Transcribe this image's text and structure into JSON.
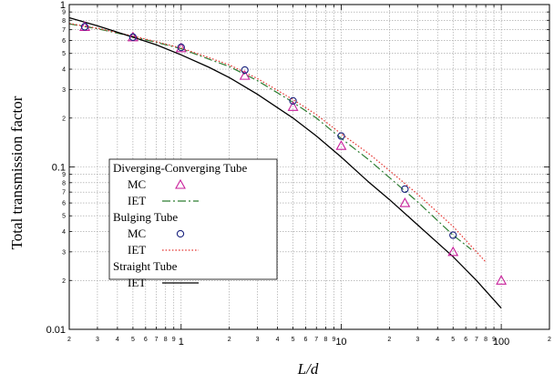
{
  "chart_data": {
    "type": "scatter",
    "title": "",
    "xlabel": "L/d",
    "ylabel": "Total transmission factor",
    "x_scale": "log",
    "y_scale": "log",
    "xlim": [
      0.2,
      200
    ],
    "ylim": [
      0.01,
      1
    ],
    "grid": true,
    "x_major_ticks": [
      {
        "v": 1,
        "label": "1"
      },
      {
        "v": 10,
        "label": "10"
      },
      {
        "v": 100,
        "label": "100"
      }
    ],
    "x_minor_ticks": [
      {
        "v": 0.2,
        "label": "2"
      },
      {
        "v": 0.3,
        "label": "3"
      },
      {
        "v": 0.4,
        "label": "4"
      },
      {
        "v": 0.5,
        "label": "5"
      },
      {
        "v": 0.6,
        "label": "6"
      },
      {
        "v": 0.7,
        "label": "7"
      },
      {
        "v": 0.8,
        "label": "8"
      },
      {
        "v": 0.9,
        "label": "9"
      },
      {
        "v": 2,
        "label": "2"
      },
      {
        "v": 3,
        "label": "3"
      },
      {
        "v": 4,
        "label": "4"
      },
      {
        "v": 5,
        "label": "5"
      },
      {
        "v": 6,
        "label": "6"
      },
      {
        "v": 7,
        "label": "7"
      },
      {
        "v": 8,
        "label": "8"
      },
      {
        "v": 9,
        "label": "9"
      },
      {
        "v": 20,
        "label": "2"
      },
      {
        "v": 30,
        "label": "3"
      },
      {
        "v": 40,
        "label": "4"
      },
      {
        "v": 50,
        "label": "5"
      },
      {
        "v": 60,
        "label": "6"
      },
      {
        "v": 70,
        "label": "7"
      },
      {
        "v": 80,
        "label": "8"
      },
      {
        "v": 90,
        "label": "9"
      },
      {
        "v": 200,
        "label": "2"
      }
    ],
    "y_major_ticks": [
      {
        "v": 0.01,
        "label": "0.01"
      },
      {
        "v": 0.1,
        "label": "0.1"
      },
      {
        "v": 1,
        "label": "1"
      }
    ],
    "y_minor_ticks": [
      {
        "v": 0.02,
        "label": "2"
      },
      {
        "v": 0.03,
        "label": "3"
      },
      {
        "v": 0.04,
        "label": "4"
      },
      {
        "v": 0.05,
        "label": "5"
      },
      {
        "v": 0.06,
        "label": "6"
      },
      {
        "v": 0.07,
        "label": "7"
      },
      {
        "v": 0.08,
        "label": "8"
      },
      {
        "v": 0.09,
        "label": "9"
      },
      {
        "v": 0.2,
        "label": "2"
      },
      {
        "v": 0.3,
        "label": "3"
      },
      {
        "v": 0.4,
        "label": "4"
      },
      {
        "v": 0.5,
        "label": "5"
      },
      {
        "v": 0.6,
        "label": "6"
      },
      {
        "v": 0.7,
        "label": "7"
      },
      {
        "v": 0.8,
        "label": "8"
      },
      {
        "v": 0.9,
        "label": "9"
      }
    ],
    "legend": {
      "position": "left-center",
      "groups": [
        {
          "title": "Diverging-Converging Tube",
          "entries": [
            {
              "label": "MC",
              "series": "dc_mc"
            },
            {
              "label": "IET",
              "series": "dc_iet"
            }
          ]
        },
        {
          "title": "Bulging Tube",
          "entries": [
            {
              "label": "MC",
              "series": "bt_mc"
            },
            {
              "label": "IET",
              "series": "bt_iet"
            }
          ]
        },
        {
          "title": "Straight Tube",
          "entries": [
            {
              "label": "IET",
              "series": "st_iet"
            }
          ]
        }
      ]
    },
    "series": [
      {
        "id": "dc_mc",
        "marker": "triangle",
        "color": "#c81e9a",
        "kind": "points",
        "points": [
          [
            0.25,
            0.73
          ],
          [
            0.5,
            0.63
          ],
          [
            1,
            0.54
          ],
          [
            2.5,
            0.365
          ],
          [
            5,
            0.235
          ],
          [
            10,
            0.135
          ],
          [
            25,
            0.06
          ],
          [
            50,
            0.03
          ],
          [
            100,
            0.02
          ]
        ]
      },
      {
        "id": "dc_iet",
        "marker": "none",
        "color": "#2e7d32",
        "kind": "dashdot",
        "points": [
          [
            0.2,
            0.76
          ],
          [
            0.3,
            0.71
          ],
          [
            0.5,
            0.635
          ],
          [
            0.7,
            0.585
          ],
          [
            1,
            0.535
          ],
          [
            1.5,
            0.46
          ],
          [
            2,
            0.415
          ],
          [
            3,
            0.34
          ],
          [
            5,
            0.25
          ],
          [
            7,
            0.2
          ],
          [
            10,
            0.15
          ],
          [
            15,
            0.11
          ],
          [
            20,
            0.086
          ],
          [
            30,
            0.061
          ],
          [
            50,
            0.038
          ],
          [
            65,
            0.031
          ]
        ]
      },
      {
        "id": "bt_mc",
        "marker": "circle",
        "color": "#1a237e",
        "kind": "points",
        "points": [
          [
            0.25,
            0.73
          ],
          [
            0.5,
            0.63
          ],
          [
            1,
            0.545
          ],
          [
            2.5,
            0.395
          ],
          [
            5,
            0.255
          ],
          [
            10,
            0.155
          ],
          [
            25,
            0.073
          ],
          [
            50,
            0.038
          ]
        ]
      },
      {
        "id": "bt_iet",
        "marker": "none",
        "color": "#e53935",
        "kind": "dotted",
        "points": [
          [
            0.2,
            0.765
          ],
          [
            0.3,
            0.715
          ],
          [
            0.5,
            0.64
          ],
          [
            0.7,
            0.59
          ],
          [
            1,
            0.54
          ],
          [
            1.5,
            0.47
          ],
          [
            2,
            0.425
          ],
          [
            3,
            0.35
          ],
          [
            5,
            0.26
          ],
          [
            7,
            0.21
          ],
          [
            10,
            0.16
          ],
          [
            15,
            0.12
          ],
          [
            20,
            0.095
          ],
          [
            30,
            0.068
          ],
          [
            50,
            0.043
          ],
          [
            80,
            0.026
          ]
        ]
      },
      {
        "id": "st_iet",
        "marker": "none",
        "color": "#000000",
        "kind": "solid",
        "points": [
          [
            0.2,
            0.83
          ],
          [
            0.3,
            0.74
          ],
          [
            0.5,
            0.63
          ],
          [
            0.7,
            0.565
          ],
          [
            1,
            0.49
          ],
          [
            1.5,
            0.41
          ],
          [
            2,
            0.355
          ],
          [
            3,
            0.28
          ],
          [
            5,
            0.2
          ],
          [
            7,
            0.155
          ],
          [
            10,
            0.115
          ],
          [
            15,
            0.08
          ],
          [
            20,
            0.063
          ],
          [
            30,
            0.044
          ],
          [
            50,
            0.028
          ],
          [
            70,
            0.02
          ],
          [
            100,
            0.0135
          ]
        ]
      }
    ]
  }
}
